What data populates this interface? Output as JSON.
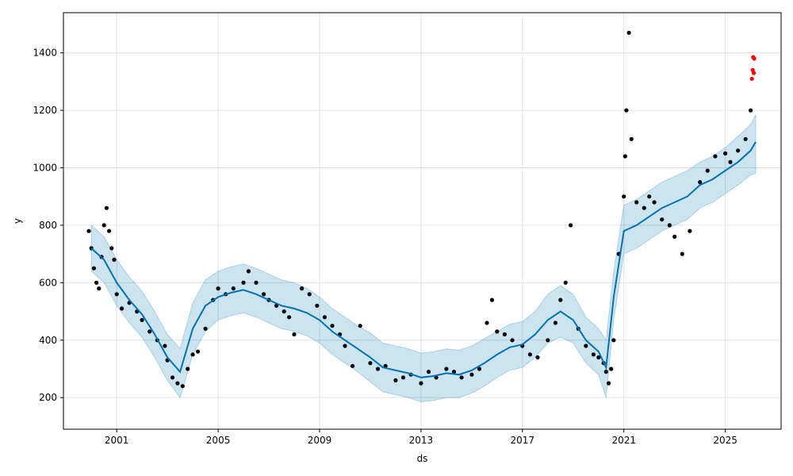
{
  "chart_data": {
    "type": "scatter",
    "title": "",
    "xlabel": "ds",
    "ylabel": "y",
    "xlim": [
      1998.9,
      2027.2
    ],
    "ylim": [
      90,
      1540
    ],
    "grid": true,
    "x_ticks": [
      2001,
      2005,
      2009,
      2013,
      2017,
      2021,
      2025
    ],
    "x_tick_labels": [
      "2001",
      "2005",
      "2009",
      "2013",
      "2017",
      "2021",
      "2025"
    ],
    "y_ticks": [
      200,
      400,
      600,
      800,
      1000,
      1200,
      1400
    ],
    "y_tick_labels": [
      "200",
      "400",
      "600",
      "800",
      "1000",
      "1200",
      "1400"
    ],
    "colors": {
      "observed": "#000000",
      "recent": "#ff0000",
      "forecast_line": "#0072B2",
      "uncertainty_band": "#0072B2"
    },
    "series": [
      {
        "role": "forecast",
        "x": [
          2000.0,
          2000.5,
          2001.0,
          2001.5,
          2002.0,
          2002.5,
          2003.0,
          2003.5,
          2004.0,
          2004.5,
          2005.0,
          2005.5,
          2006.0,
          2006.5,
          2007.0,
          2007.5,
          2008.0,
          2008.5,
          2009.0,
          2009.5,
          2010.0,
          2010.5,
          2011.0,
          2011.5,
          2012.0,
          2012.5,
          2013.0,
          2013.5,
          2014.0,
          2014.5,
          2015.0,
          2015.5,
          2016.0,
          2016.5,
          2017.0,
          2017.5,
          2018.0,
          2018.5,
          2019.0,
          2019.5,
          2020.0,
          2020.3,
          2020.6,
          2021.0,
          2021.5,
          2022.0,
          2022.5,
          2023.0,
          2023.5,
          2024.0,
          2024.5,
          2025.0,
          2025.5,
          2026.0,
          2026.2
        ],
        "y": [
          720,
          680,
          600,
          540,
          490,
          420,
          340,
          290,
          440,
          520,
          550,
          565,
          575,
          560,
          540,
          520,
          510,
          495,
          470,
          430,
          400,
          370,
          340,
          305,
          295,
          285,
          270,
          275,
          285,
          280,
          295,
          320,
          350,
          375,
          385,
          420,
          470,
          500,
          470,
          400,
          360,
          305,
          550,
          780,
          800,
          830,
          860,
          880,
          900,
          940,
          960,
          990,
          1020,
          1060,
          1090
        ]
      },
      {
        "role": "uncertainty_band",
        "x": [
          2000.0,
          2000.5,
          2001.0,
          2001.5,
          2002.0,
          2002.5,
          2003.0,
          2003.5,
          2004.0,
          2004.5,
          2005.0,
          2005.5,
          2006.0,
          2006.5,
          2007.0,
          2007.5,
          2008.0,
          2008.5,
          2009.0,
          2009.5,
          2010.0,
          2010.5,
          2011.0,
          2011.5,
          2012.0,
          2012.5,
          2013.0,
          2013.5,
          2014.0,
          2014.5,
          2015.0,
          2015.5,
          2016.0,
          2016.5,
          2017.0,
          2017.5,
          2018.0,
          2018.5,
          2019.0,
          2019.5,
          2020.0,
          2020.3,
          2020.6,
          2021.0,
          2021.5,
          2022.0,
          2022.5,
          2023.0,
          2023.5,
          2024.0,
          2024.5,
          2025.0,
          2025.5,
          2026.0,
          2026.2
        ],
        "lower": [
          640,
          600,
          520,
          460,
          410,
          340,
          260,
          200,
          350,
          430,
          470,
          485,
          495,
          480,
          460,
          440,
          430,
          415,
          390,
          350,
          320,
          290,
          255,
          220,
          210,
          200,
          185,
          190,
          200,
          200,
          215,
          240,
          270,
          295,
          305,
          340,
          390,
          410,
          390,
          320,
          280,
          200,
          470,
          700,
          720,
          750,
          780,
          800,
          820,
          860,
          880,
          910,
          940,
          975,
          980
        ],
        "upper": [
          800,
          760,
          680,
          620,
          570,
          500,
          420,
          370,
          530,
          610,
          640,
          655,
          665,
          650,
          630,
          610,
          600,
          580,
          550,
          510,
          480,
          450,
          425,
          390,
          380,
          370,
          355,
          360,
          370,
          365,
          380,
          405,
          430,
          455,
          465,
          500,
          560,
          590,
          560,
          480,
          440,
          400,
          640,
          870,
          890,
          920,
          950,
          970,
          990,
          1020,
          1040,
          1070,
          1110,
          1150,
          1185
        ]
      },
      {
        "role": "observed",
        "x": [
          1999.9,
          2000.0,
          2000.1,
          2000.2,
          2000.3,
          2000.4,
          2000.5,
          2000.6,
          2000.7,
          2000.8,
          2000.9,
          2001.0,
          2001.2,
          2001.5,
          2001.8,
          2002.0,
          2002.3,
          2002.6,
          2002.9,
          2003.0,
          2003.2,
          2003.4,
          2003.6,
          2003.8,
          2004.0,
          2004.2,
          2004.5,
          2004.8,
          2005.0,
          2005.3,
          2005.6,
          2006.0,
          2006.2,
          2006.5,
          2006.8,
          2007.0,
          2007.3,
          2007.6,
          2007.8,
          2008.0,
          2008.3,
          2008.6,
          2008.9,
          2009.2,
          2009.5,
          2009.8,
          2010.0,
          2010.3,
          2010.6,
          2011.0,
          2011.3,
          2011.6,
          2012.0,
          2012.3,
          2012.6,
          2013.0,
          2013.3,
          2013.6,
          2014.0,
          2014.3,
          2014.6,
          2015.0,
          2015.3,
          2015.6,
          2015.8,
          2016.0,
          2016.3,
          2016.6,
          2017.0,
          2017.3,
          2017.6,
          2018.0,
          2018.3,
          2018.5,
          2018.7,
          2018.9,
          2019.2,
          2019.5,
          2019.8,
          2020.0,
          2020.2,
          2020.3,
          2020.4,
          2020.5,
          2020.6,
          2020.8,
          2021.0,
          2021.05,
          2021.1,
          2021.2,
          2021.3,
          2021.5,
          2021.8,
          2022.0,
          2022.2,
          2022.5,
          2022.8,
          2023.0,
          2023.3,
          2023.6,
          2024.0,
          2024.3,
          2024.6,
          2025.0,
          2025.2,
          2025.5,
          2025.8,
          2026.0
        ],
        "y": [
          780,
          720,
          650,
          600,
          580,
          690,
          800,
          860,
          780,
          720,
          680,
          560,
          510,
          530,
          500,
          470,
          430,
          400,
          380,
          330,
          270,
          250,
          240,
          300,
          350,
          360,
          440,
          540,
          580,
          560,
          580,
          600,
          640,
          600,
          560,
          540,
          520,
          500,
          480,
          420,
          580,
          560,
          520,
          480,
          450,
          420,
          380,
          310,
          450,
          320,
          300,
          310,
          260,
          270,
          280,
          250,
          290,
          270,
          300,
          290,
          270,
          280,
          300,
          460,
          540,
          430,
          420,
          400,
          380,
          350,
          340,
          400,
          460,
          540,
          600,
          800,
          440,
          380,
          350,
          340,
          320,
          290,
          250,
          300,
          400,
          700,
          900,
          1040,
          1200,
          1470,
          1100,
          880,
          860,
          900,
          880,
          820,
          800,
          760,
          700,
          780,
          950,
          990,
          1040,
          1050,
          1020,
          1060,
          1100,
          1200
        ]
      },
      {
        "role": "recent",
        "x": [
          2026.05,
          2026.08,
          2026.1,
          2026.12,
          2026.14
        ],
        "y": [
          1310,
          1340,
          1385,
          1330,
          1380
        ]
      }
    ]
  }
}
